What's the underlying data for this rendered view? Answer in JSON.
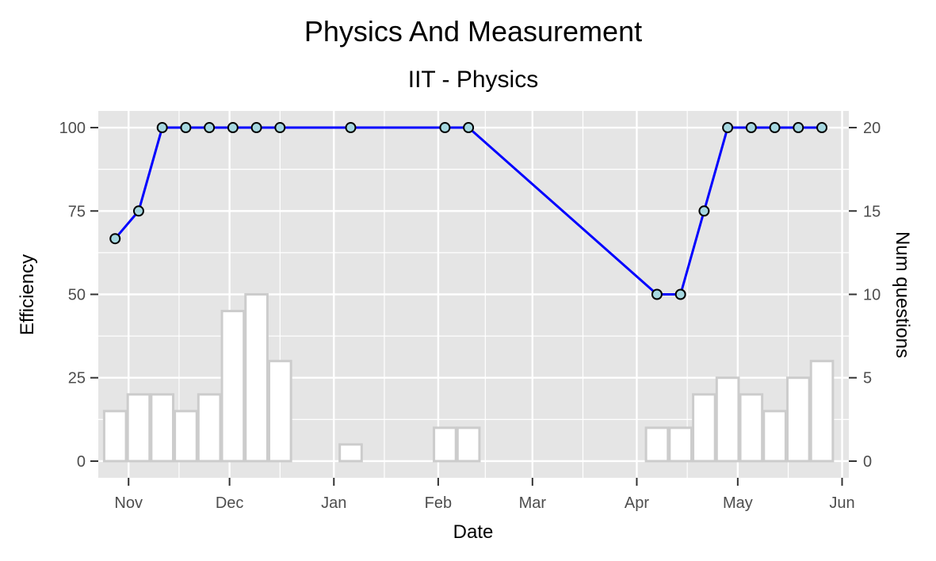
{
  "chart_data": {
    "type": "line",
    "title": "Physics And Measurement",
    "subtitle": "IIT - Physics",
    "xlabel": "Date",
    "ylabel": "Efficiency",
    "y2label": "Num questions",
    "xlim": [
      "2017-10-23",
      "2018-06-03"
    ],
    "x_ticks": [
      {
        "date": "2017-11-01",
        "label": "Nov"
      },
      {
        "date": "2017-12-01",
        "label": "Dec"
      },
      {
        "date": "2018-01-01",
        "label": "Jan"
      },
      {
        "date": "2018-02-01",
        "label": "Feb"
      },
      {
        "date": "2018-03-01",
        "label": "Mar"
      },
      {
        "date": "2018-04-01",
        "label": "Apr"
      },
      {
        "date": "2018-05-01",
        "label": "May"
      },
      {
        "date": "2018-06-01",
        "label": "Jun"
      }
    ],
    "ylim": [
      -5,
      105
    ],
    "y_ticks": [
      0,
      25,
      50,
      75,
      100
    ],
    "y2lim": [
      -1,
      21
    ],
    "y2_ticks": [
      0,
      5,
      10,
      15,
      20
    ],
    "grid": true,
    "colors": {
      "panel": "#e5e5e5",
      "line": "#0000ff",
      "point_fill": "#a6d8e0",
      "point_stroke": "#000000",
      "bar_fill": "#ffffff",
      "bar_stroke": "#cccccc"
    },
    "series": [
      {
        "type": "line",
        "axis": "left",
        "points": [
          {
            "x": "2017-10-28",
            "y": 66.7
          },
          {
            "x": "2017-11-04",
            "y": 75
          },
          {
            "x": "2017-11-11",
            "y": 100
          },
          {
            "x": "2017-11-18",
            "y": 100
          },
          {
            "x": "2017-11-25",
            "y": 100
          },
          {
            "x": "2017-12-02",
            "y": 100
          },
          {
            "x": "2017-12-09",
            "y": 100
          },
          {
            "x": "2017-12-16",
            "y": 100
          },
          {
            "x": "2018-01-06",
            "y": 100
          },
          {
            "x": "2018-02-03",
            "y": 100
          },
          {
            "x": "2018-02-10",
            "y": 100
          },
          {
            "x": "2018-04-07",
            "y": 50
          },
          {
            "x": "2018-04-14",
            "y": 50
          },
          {
            "x": "2018-04-21",
            "y": 75
          },
          {
            "x": "2018-04-28",
            "y": 100
          },
          {
            "x": "2018-05-05",
            "y": 100
          },
          {
            "x": "2018-05-12",
            "y": 100
          },
          {
            "x": "2018-05-19",
            "y": 100
          },
          {
            "x": "2018-05-26",
            "y": 100
          }
        ]
      },
      {
        "type": "bar",
        "axis": "right",
        "bars": [
          {
            "x": "2017-10-28",
            "y": 3
          },
          {
            "x": "2017-11-04",
            "y": 4
          },
          {
            "x": "2017-11-11",
            "y": 4
          },
          {
            "x": "2017-11-18",
            "y": 3
          },
          {
            "x": "2017-11-25",
            "y": 4
          },
          {
            "x": "2017-12-02",
            "y": 9
          },
          {
            "x": "2017-12-09",
            "y": 10
          },
          {
            "x": "2017-12-16",
            "y": 6
          },
          {
            "x": "2018-01-06",
            "y": 1
          },
          {
            "x": "2018-02-03",
            "y": 2
          },
          {
            "x": "2018-02-10",
            "y": 2
          },
          {
            "x": "2018-04-07",
            "y": 2
          },
          {
            "x": "2018-04-14",
            "y": 2
          },
          {
            "x": "2018-04-21",
            "y": 4
          },
          {
            "x": "2018-04-28",
            "y": 5
          },
          {
            "x": "2018-05-05",
            "y": 4
          },
          {
            "x": "2018-05-12",
            "y": 3
          },
          {
            "x": "2018-05-19",
            "y": 5
          },
          {
            "x": "2018-05-26",
            "y": 6
          }
        ]
      }
    ]
  }
}
